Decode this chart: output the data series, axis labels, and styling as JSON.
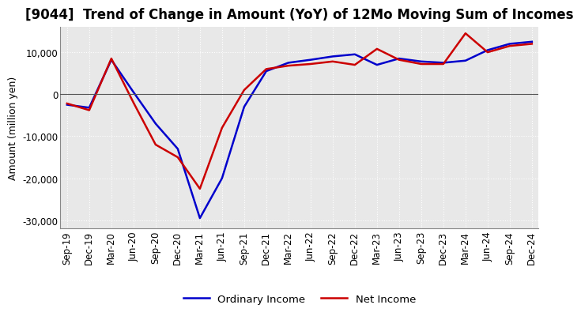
{
  "title": "[9044]  Trend of Change in Amount (YoY) of 12Mo Moving Sum of Incomes",
  "ylabel": "Amount (million yen)",
  "background_color": "#ffffff",
  "plot_bg_color": "#e8e8e8",
  "grid_color": "#ffffff",
  "xlabels": [
    "Sep-19",
    "Dec-19",
    "Mar-20",
    "Jun-20",
    "Sep-20",
    "Dec-20",
    "Mar-21",
    "Jun-21",
    "Sep-21",
    "Dec-21",
    "Mar-22",
    "Jun-22",
    "Sep-22",
    "Dec-22",
    "Mar-23",
    "Jun-23",
    "Sep-23",
    "Dec-23",
    "Mar-24",
    "Jun-24",
    "Sep-24",
    "Dec-24"
  ],
  "ordinary_income": [
    -2500,
    -3200,
    8200,
    500,
    -7000,
    -13000,
    -29500,
    -20000,
    -3000,
    5500,
    7500,
    8200,
    9000,
    9500,
    7000,
    8500,
    7800,
    7500,
    8000,
    10500,
    12000,
    12500
  ],
  "net_income": [
    -2200,
    -3800,
    8500,
    -2000,
    -12000,
    -15000,
    -22500,
    -8000,
    1000,
    6000,
    6800,
    7200,
    7800,
    7000,
    10800,
    8200,
    7200,
    7200,
    14500,
    10000,
    11500,
    12000
  ],
  "ordinary_color": "#0000cc",
  "net_color": "#cc0000",
  "ylim": [
    -32000,
    16000
  ],
  "yticks": [
    -30000,
    -20000,
    -10000,
    0,
    10000
  ],
  "line_width": 1.8,
  "title_fontsize": 12,
  "legend_labels": [
    "Ordinary Income",
    "Net Income"
  ],
  "tick_fontsize": 8.5,
  "ylabel_fontsize": 9
}
